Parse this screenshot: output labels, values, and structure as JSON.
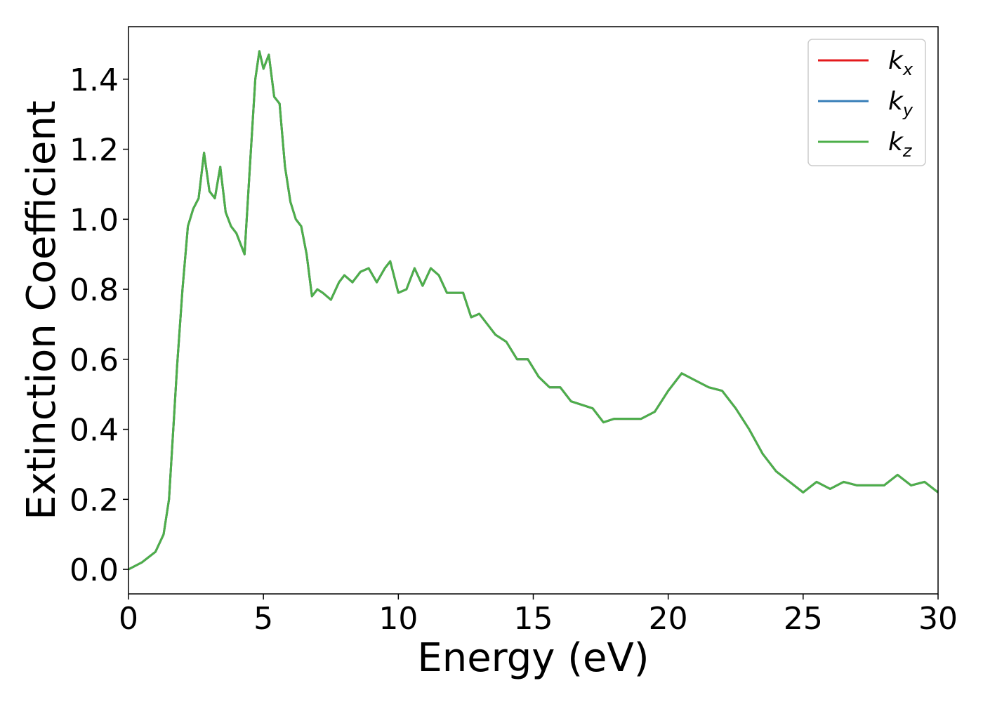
{
  "chart_data": {
    "type": "line",
    "xlabel": "Energy (eV)",
    "ylabel": "Extinction Coefficient",
    "xlim": [
      0,
      30
    ],
    "ylim": [
      -0.07,
      1.55
    ],
    "xticks": [
      0,
      5,
      10,
      15,
      20,
      25,
      30
    ],
    "yticks": [
      0.0,
      0.2,
      0.4,
      0.6,
      0.8,
      1.0,
      1.2,
      1.4
    ],
    "grid": false,
    "legend_position": "top-right",
    "series": [
      {
        "name": "k",
        "name_sub": "x",
        "color": "#e41a1c",
        "x": [
          0,
          0.5,
          1.0,
          1.3,
          1.5,
          1.7,
          1.8,
          2.0,
          2.2,
          2.4,
          2.6,
          2.8,
          3.0,
          3.2,
          3.4,
          3.6,
          3.8,
          4.0,
          4.2,
          4.3,
          4.5,
          4.7,
          4.85,
          5.0,
          5.2,
          5.4,
          5.6,
          5.8,
          6.0,
          6.2,
          6.4,
          6.6,
          6.8,
          7.0,
          7.2,
          7.5,
          7.8,
          8.0,
          8.3,
          8.6,
          8.9,
          9.2,
          9.5,
          9.7,
          10.0,
          10.3,
          10.6,
          10.9,
          11.2,
          11.5,
          11.8,
          12.1,
          12.4,
          12.7,
          13.0,
          13.3,
          13.6,
          14.0,
          14.4,
          14.8,
          15.2,
          15.6,
          16.0,
          16.4,
          16.8,
          17.2,
          17.6,
          18.0,
          18.5,
          19.0,
          19.5,
          20.0,
          20.5,
          21.0,
          21.5,
          22.0,
          22.5,
          23.0,
          23.5,
          24.0,
          24.5,
          25.0,
          25.5,
          26.0,
          26.5,
          27.0,
          27.5,
          28.0,
          28.5,
          29.0,
          29.5,
          30.0
        ],
        "y": [
          0.0,
          0.02,
          0.05,
          0.1,
          0.2,
          0.45,
          0.58,
          0.8,
          0.98,
          1.03,
          1.06,
          1.19,
          1.08,
          1.06,
          1.15,
          1.02,
          0.98,
          0.96,
          0.92,
          0.9,
          1.15,
          1.4,
          1.48,
          1.43,
          1.47,
          1.35,
          1.33,
          1.15,
          1.05,
          1.0,
          0.98,
          0.9,
          0.78,
          0.8,
          0.79,
          0.77,
          0.82,
          0.84,
          0.82,
          0.85,
          0.86,
          0.82,
          0.86,
          0.88,
          0.79,
          0.8,
          0.86,
          0.81,
          0.86,
          0.84,
          0.79,
          0.79,
          0.79,
          0.72,
          0.73,
          0.7,
          0.67,
          0.65,
          0.6,
          0.6,
          0.55,
          0.52,
          0.52,
          0.48,
          0.47,
          0.46,
          0.42,
          0.43,
          0.43,
          0.43,
          0.45,
          0.51,
          0.56,
          0.54,
          0.52,
          0.51,
          0.46,
          0.4,
          0.33,
          0.28,
          0.25,
          0.22,
          0.25,
          0.23,
          0.25,
          0.24,
          0.24,
          0.24,
          0.27,
          0.24,
          0.25,
          0.22
        ]
      },
      {
        "name": "k",
        "name_sub": "y",
        "color": "#377eb8",
        "x": [
          0,
          0.5,
          1.0,
          1.3,
          1.5,
          1.7,
          1.8,
          2.0,
          2.2,
          2.4,
          2.6,
          2.8,
          3.0,
          3.2,
          3.4,
          3.6,
          3.8,
          4.0,
          4.2,
          4.3,
          4.5,
          4.7,
          4.85,
          5.0,
          5.2,
          5.4,
          5.6,
          5.8,
          6.0,
          6.2,
          6.4,
          6.6,
          6.8,
          7.0,
          7.2,
          7.5,
          7.8,
          8.0,
          8.3,
          8.6,
          8.9,
          9.2,
          9.5,
          9.7,
          10.0,
          10.3,
          10.6,
          10.9,
          11.2,
          11.5,
          11.8,
          12.1,
          12.4,
          12.7,
          13.0,
          13.3,
          13.6,
          14.0,
          14.4,
          14.8,
          15.2,
          15.6,
          16.0,
          16.4,
          16.8,
          17.2,
          17.6,
          18.0,
          18.5,
          19.0,
          19.5,
          20.0,
          20.5,
          21.0,
          21.5,
          22.0,
          22.5,
          23.0,
          23.5,
          24.0,
          24.5,
          25.0,
          25.5,
          26.0,
          26.5,
          27.0,
          27.5,
          28.0,
          28.5,
          29.0,
          29.5,
          30.0
        ],
        "y": [
          0.0,
          0.02,
          0.05,
          0.1,
          0.2,
          0.45,
          0.58,
          0.8,
          0.98,
          1.03,
          1.06,
          1.19,
          1.08,
          1.06,
          1.15,
          1.02,
          0.98,
          0.96,
          0.92,
          0.9,
          1.15,
          1.4,
          1.48,
          1.43,
          1.47,
          1.35,
          1.33,
          1.15,
          1.05,
          1.0,
          0.98,
          0.9,
          0.78,
          0.8,
          0.79,
          0.77,
          0.82,
          0.84,
          0.82,
          0.85,
          0.86,
          0.82,
          0.86,
          0.88,
          0.79,
          0.8,
          0.86,
          0.81,
          0.86,
          0.84,
          0.79,
          0.79,
          0.79,
          0.72,
          0.73,
          0.7,
          0.67,
          0.65,
          0.6,
          0.6,
          0.55,
          0.52,
          0.52,
          0.48,
          0.47,
          0.46,
          0.42,
          0.43,
          0.43,
          0.43,
          0.45,
          0.51,
          0.56,
          0.54,
          0.52,
          0.51,
          0.46,
          0.4,
          0.33,
          0.28,
          0.25,
          0.22,
          0.25,
          0.23,
          0.25,
          0.24,
          0.24,
          0.24,
          0.27,
          0.24,
          0.25,
          0.22
        ]
      },
      {
        "name": "k",
        "name_sub": "z",
        "color": "#4daf4a",
        "x": [
          0,
          0.5,
          1.0,
          1.3,
          1.5,
          1.7,
          1.8,
          2.0,
          2.2,
          2.4,
          2.6,
          2.8,
          3.0,
          3.2,
          3.4,
          3.6,
          3.8,
          4.0,
          4.2,
          4.3,
          4.5,
          4.7,
          4.85,
          5.0,
          5.2,
          5.4,
          5.6,
          5.8,
          6.0,
          6.2,
          6.4,
          6.6,
          6.8,
          7.0,
          7.2,
          7.5,
          7.8,
          8.0,
          8.3,
          8.6,
          8.9,
          9.2,
          9.5,
          9.7,
          10.0,
          10.3,
          10.6,
          10.9,
          11.2,
          11.5,
          11.8,
          12.1,
          12.4,
          12.7,
          13.0,
          13.3,
          13.6,
          14.0,
          14.4,
          14.8,
          15.2,
          15.6,
          16.0,
          16.4,
          16.8,
          17.2,
          17.6,
          18.0,
          18.5,
          19.0,
          19.5,
          20.0,
          20.5,
          21.0,
          21.5,
          22.0,
          22.5,
          23.0,
          23.5,
          24.0,
          24.5,
          25.0,
          25.5,
          26.0,
          26.5,
          27.0,
          27.5,
          28.0,
          28.5,
          29.0,
          29.5,
          30.0
        ],
        "y": [
          0.0,
          0.02,
          0.05,
          0.1,
          0.2,
          0.45,
          0.58,
          0.8,
          0.98,
          1.03,
          1.06,
          1.19,
          1.08,
          1.06,
          1.15,
          1.02,
          0.98,
          0.96,
          0.92,
          0.9,
          1.15,
          1.4,
          1.48,
          1.43,
          1.47,
          1.35,
          1.33,
          1.15,
          1.05,
          1.0,
          0.98,
          0.9,
          0.78,
          0.8,
          0.79,
          0.77,
          0.82,
          0.84,
          0.82,
          0.85,
          0.86,
          0.82,
          0.86,
          0.88,
          0.79,
          0.8,
          0.86,
          0.81,
          0.86,
          0.84,
          0.79,
          0.79,
          0.79,
          0.72,
          0.73,
          0.7,
          0.67,
          0.65,
          0.6,
          0.6,
          0.55,
          0.52,
          0.52,
          0.48,
          0.47,
          0.46,
          0.42,
          0.43,
          0.43,
          0.43,
          0.45,
          0.51,
          0.56,
          0.54,
          0.52,
          0.51,
          0.46,
          0.4,
          0.33,
          0.28,
          0.25,
          0.22,
          0.25,
          0.23,
          0.25,
          0.24,
          0.24,
          0.24,
          0.27,
          0.24,
          0.25,
          0.22
        ]
      }
    ]
  }
}
